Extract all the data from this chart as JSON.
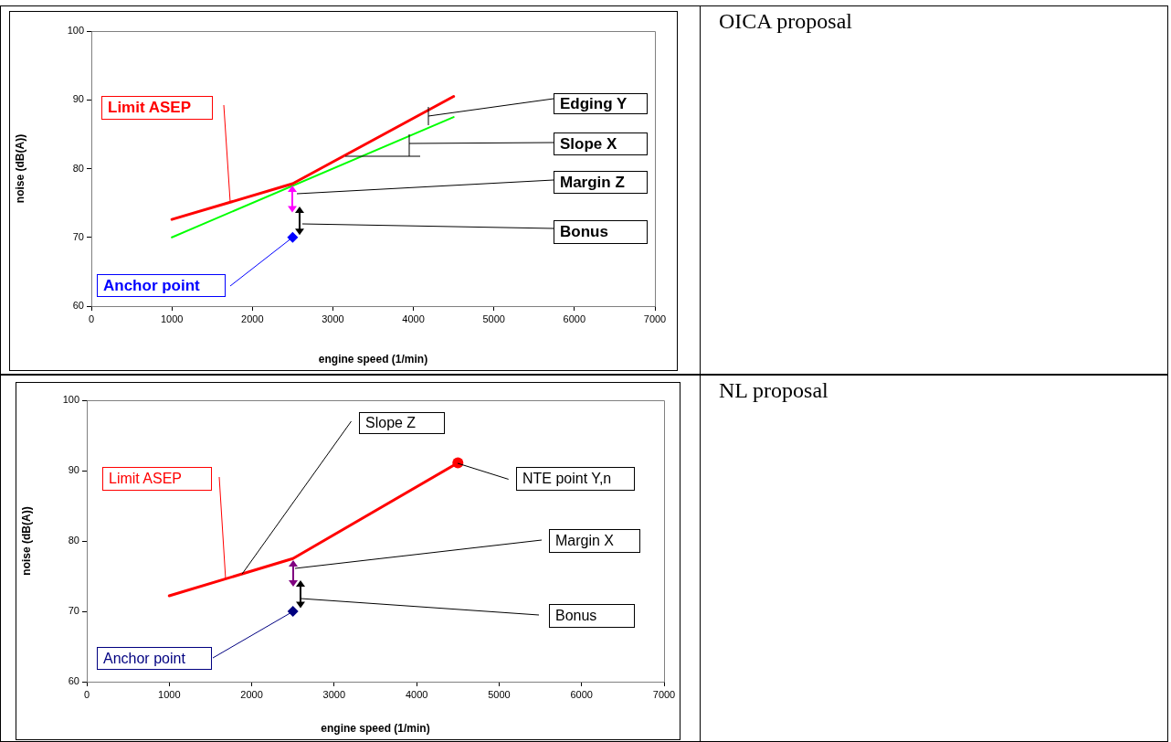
{
  "chart_data": [
    {
      "type": "line",
      "xlabel": "engine speed (1/min)",
      "ylabel": "noise (dB(A))",
      "xlim": [
        0,
        7000
      ],
      "xticks": [
        0,
        1000,
        2000,
        3000,
        4000,
        5000,
        6000,
        7000
      ],
      "ylim": [
        60,
        100
      ],
      "yticks": [
        60,
        70,
        80,
        90,
        100
      ],
      "grid": false,
      "series": [
        {
          "type": "line",
          "color": "#ff0000",
          "marker": "none",
          "x": [
            1000,
            2500,
            4500
          ],
          "values": [
            72.6,
            77.8,
            90.5
          ]
        },
        {
          "type": "line",
          "color": "#00ff00",
          "marker": "none",
          "x": [
            1000,
            4500
          ],
          "values": [
            70,
            87.5
          ]
        },
        {
          "type": "scatter",
          "color": "#0000ff",
          "marker": "diamond",
          "x": [
            2500
          ],
          "values": [
            70
          ]
        }
      ],
      "annotations": [
        "Limit ASEP",
        "Edging Y",
        "Slope X",
        "Margin Z",
        "Bonus",
        "Anchor point"
      ]
    },
    {
      "type": "other",
      "title": "OICA proposal"
    },
    {
      "type": "line",
      "xlabel": "engine speed (1/min)",
      "ylabel": "noise (dB(A))",
      "xlim": [
        0,
        7000
      ],
      "xticks": [
        0,
        1000,
        2000,
        3000,
        4000,
        5000,
        6000,
        7000
      ],
      "ylim": [
        60,
        100
      ],
      "yticks": [
        60,
        70,
        80,
        90,
        100
      ],
      "grid": false,
      "series": [
        {
          "type": "line",
          "color": "#ff0000",
          "marker": "none",
          "x": [
            1000,
            2500,
            4500
          ],
          "values": [
            72.2,
            77.5,
            91.1
          ]
        },
        {
          "type": "scatter",
          "color": "#ff0000",
          "marker": "circle",
          "x": [
            4500
          ],
          "values": [
            91.1
          ]
        },
        {
          "type": "scatter",
          "color": "#000080",
          "marker": "diamond",
          "x": [
            2500
          ],
          "values": [
            70
          ]
        }
      ],
      "annotations": [
        {
          "text": "Slope Z",
          "x": 1888,
          "y": 75.3
        },
        "Limit ASEP",
        {
          "text": "NTE point Y,n",
          "x": 4500,
          "y": 91.1
        },
        "Margin X",
        "Bonus",
        "Anchor point"
      ]
    },
    {
      "type": "other",
      "title": "NL proposal"
    }
  ]
}
